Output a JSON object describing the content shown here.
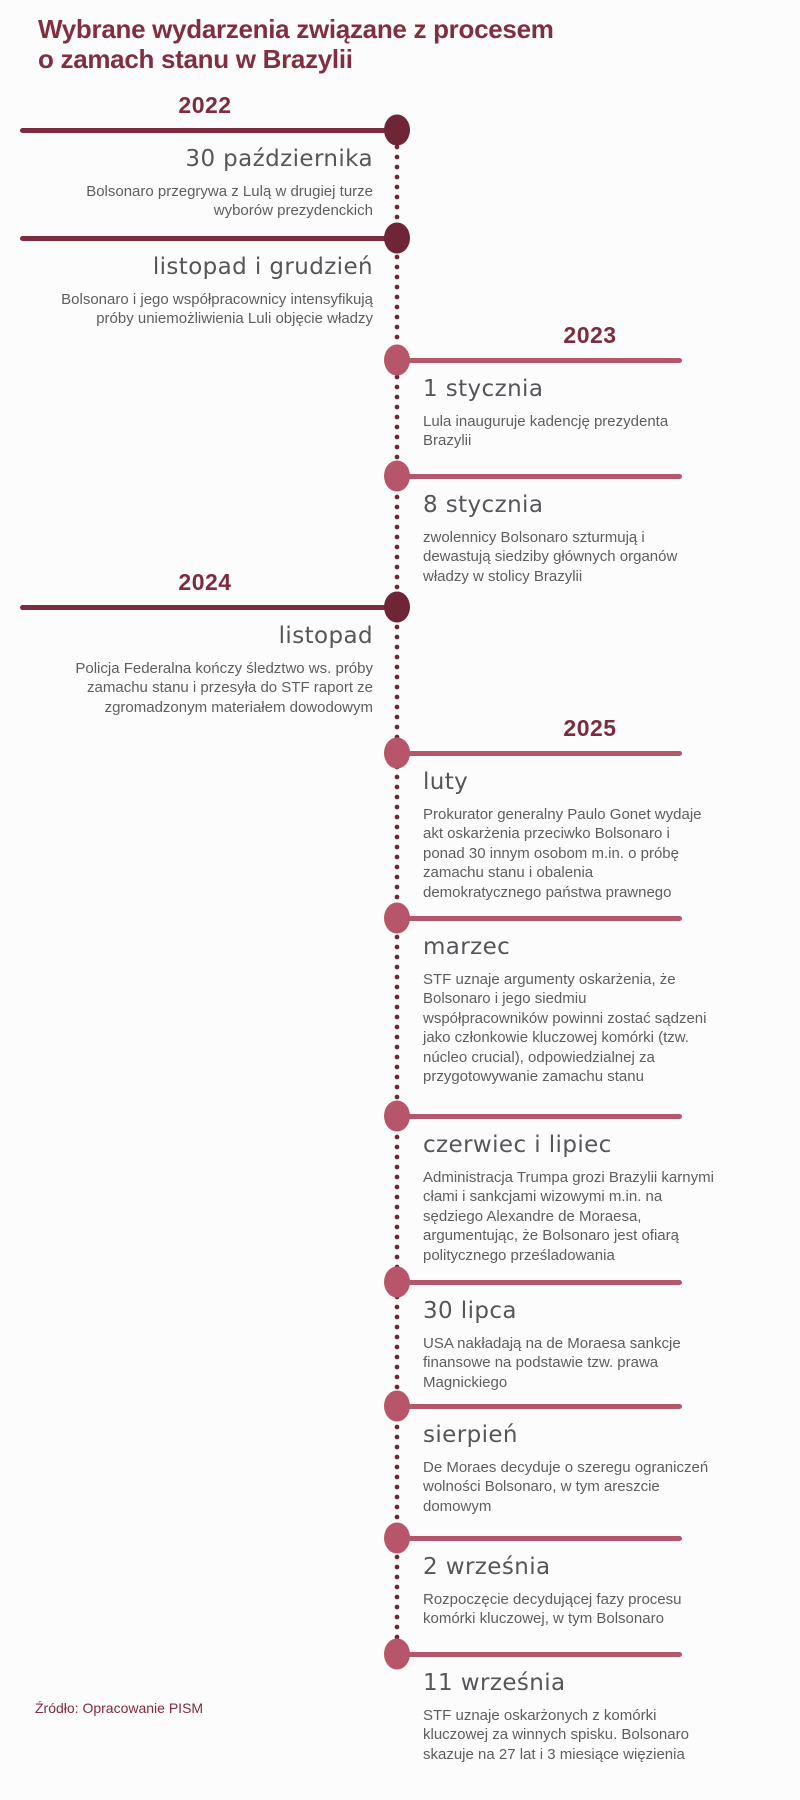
{
  "title": "Wybrane wydarzenia związane z procesem\no zamach stanu w Brazylii",
  "source": "Źródło: Opracowanie PISM",
  "colors": {
    "title_maroon": "#812e40",
    "year_maroon": "#7d2b3d",
    "left_line": "#7b2c3e",
    "left_dot": "#6e2637",
    "right_line": "#b5566a",
    "right_dot": "#b7566a",
    "heading_gray": "#55565a",
    "body_gray": "#5d5e60",
    "background": "#fdfcfc"
  },
  "timeline": {
    "events": [
      {
        "year": "2022",
        "heading": "30 października",
        "description": "Bolsonaro przegrywa z Lulą w drugiej turze wyborów prezydenckich"
      },
      {
        "year": "",
        "heading": "listopad i grudzień",
        "description": "Bolsonaro i jego współpracownicy intensyfikują próby uniemożliwienia Luli objęcie władzy"
      },
      {
        "year": "2023",
        "heading": "1 stycznia",
        "description": "Lula inauguruje kadencję prezydenta Brazylii"
      },
      {
        "year": "",
        "heading": "8 stycznia",
        "description": "zwolennicy Bolsonaro szturmują i dewastują siedziby głównych organów władzy w stolicy Brazylii"
      },
      {
        "year": "2024",
        "heading": "listopad",
        "description": "Policja Federalna kończy śledztwo ws. próby zamachu stanu i przesyła do STF raport ze zgromadzonym materiałem dowodowym"
      },
      {
        "year": "2025",
        "heading": "luty",
        "description": "Prokurator generalny Paulo Gonet wydaje akt oskarżenia przeciwko Bolsonaro i ponad 30 innym osobom m.in. o próbę zamachu stanu i obalenia demokratycznego państwa prawnego"
      },
      {
        "year": "",
        "heading": "marzec",
        "description": "STF uznaje argumenty oskarżenia, że Bolsonaro i jego siedmiu współpracowników powinni zostać sądzeni jako członkowie kluczowej komórki (tzw. núcleo crucial), odpowiedzialnej za przygotowywanie zamachu stanu"
      },
      {
        "year": "",
        "heading": "czerwiec i lipiec",
        "description": "Administracja Trumpa grozi Brazylii karnymi cłami i sankcjami wizowymi m.in. na sędziego Alexandre de Moraesa, argumentując, że Bolsonaro jest ofiarą politycznego prześladowania"
      },
      {
        "year": "",
        "heading": "30 lipca",
        "description": "USA nakładają na de Moraesa sankcje finansowe na podstawie tzw. prawa Magnickiego"
      },
      {
        "year": "",
        "heading": "sierpień",
        "description": "De Moraes decyduje o szeregu ograniczeń wolności Bolsonaro, w tym areszcie domowym"
      },
      {
        "year": "",
        "heading": "2 września",
        "description": "Rozpoczęcie decydującej fazy procesu komórki kluczowej, w tym Bolsonaro"
      },
      {
        "year": "",
        "heading": "11 września",
        "description": "STF uznaje oskarżonych z komórki kluczowej za winnych spisku. Bolsonaro skazuje na 27 lat i 3 miesiące więzienia"
      }
    ]
  }
}
